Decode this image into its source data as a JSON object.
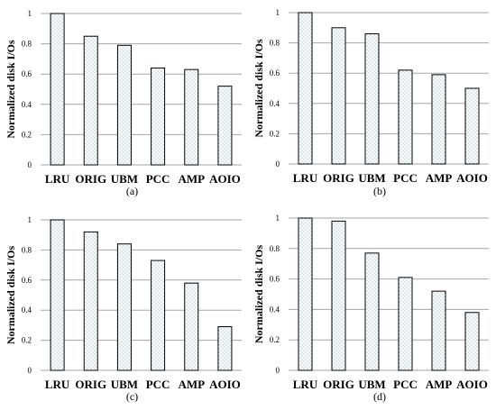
{
  "chart_data": [
    {
      "type": "bar",
      "panel_label": "(a)",
      "ylabel": "Normalized disk I/Os",
      "ylim": [
        0,
        1
      ],
      "yticks": [
        "0",
        "0.2",
        "0.4",
        "0.6",
        "0.8",
        "1"
      ],
      "grid": true,
      "bar_fill": "dotted",
      "categories": [
        "LRU",
        "ORIG",
        "UBM",
        "PCC",
        "AMP",
        "AOIO"
      ],
      "values": [
        1.0,
        0.85,
        0.79,
        0.64,
        0.63,
        0.52
      ]
    },
    {
      "type": "bar",
      "panel_label": "(b)",
      "ylabel": "Normalized disk I/Os",
      "ylim": [
        0,
        1
      ],
      "yticks": [
        "0",
        "0.2",
        "0.4",
        "0.6",
        "0.8",
        "1"
      ],
      "grid": true,
      "bar_fill": "dotted",
      "categories": [
        "LRU",
        "ORIG",
        "UBM",
        "PCC",
        "AMP",
        "AOIO"
      ],
      "values": [
        1.0,
        0.9,
        0.86,
        0.62,
        0.59,
        0.5
      ]
    },
    {
      "type": "bar",
      "panel_label": "(c)",
      "ylabel": "Normalized disk I/Os",
      "ylim": [
        0,
        1
      ],
      "yticks": [
        "0",
        "0.2",
        "0.4",
        "0.6",
        "0.8",
        "1"
      ],
      "grid": true,
      "bar_fill": "dotted",
      "categories": [
        "LRU",
        "ORIG",
        "UBM",
        "PCC",
        "AMP",
        "AOIO"
      ],
      "values": [
        1.0,
        0.92,
        0.84,
        0.73,
        0.58,
        0.29
      ]
    },
    {
      "type": "bar",
      "panel_label": "(d)",
      "ylabel": "Normalized disk I/Os",
      "ylim": [
        0,
        1
      ],
      "yticks": [
        "0",
        "0.2",
        "0.4",
        "0.6",
        "0.8",
        "1"
      ],
      "grid": true,
      "bar_fill": "dotted",
      "categories": [
        "LRU",
        "ORIG",
        "UBM",
        "PCC",
        "AMP",
        "AOIO"
      ],
      "values": [
        1.0,
        0.98,
        0.77,
        0.61,
        0.52,
        0.38
      ]
    }
  ],
  "colors": {
    "grid": "#a6a6a6",
    "bar_fill": "#ffffff",
    "bar_dots": "#7fa8c4",
    "bar_stroke": "#000000"
  }
}
